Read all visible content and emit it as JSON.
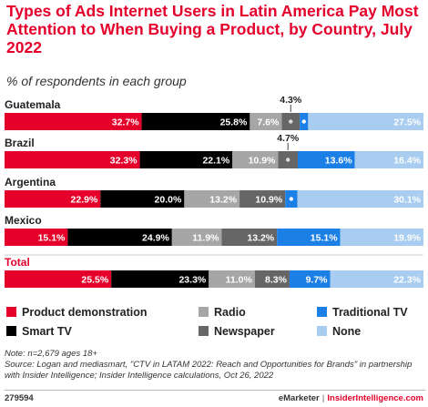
{
  "header": {
    "title": "Types of Ads Internet Users in Latin America Pay Most Attention to When Buying a Product, by Country, July 2022",
    "subtitle": "% of respondents in each group"
  },
  "chart_data": {
    "type": "bar",
    "orientation": "horizontal",
    "stacked": true,
    "categories": [
      "Guatemala",
      "Brazil",
      "Argentina",
      "Mexico",
      "Total"
    ],
    "category_colors": [
      "#222222",
      "#222222",
      "#222222",
      "#222222",
      "#e4002b"
    ],
    "series": [
      {
        "name": "Product demonstration",
        "color": "#e4002b",
        "values": [
          32.7,
          32.3,
          22.9,
          15.1,
          25.5
        ]
      },
      {
        "name": "Smart TV",
        "color": "#000000",
        "values": [
          25.8,
          22.1,
          20.0,
          24.9,
          23.3
        ]
      },
      {
        "name": "Radio",
        "color": "#a6a6a6",
        "values": [
          7.6,
          10.9,
          13.2,
          11.9,
          11.0
        ]
      },
      {
        "name": "Newspaper",
        "color": "#666666",
        "values": [
          4.3,
          4.7,
          10.9,
          13.2,
          8.3
        ]
      },
      {
        "name": "Traditional TV",
        "color": "#1b7fe6",
        "values": [
          2.0,
          13.6,
          2.9,
          15.1,
          9.7
        ]
      },
      {
        "name": "None",
        "color": "#a8cdf0",
        "values": [
          27.5,
          16.4,
          30.1,
          19.9,
          22.3
        ]
      }
    ],
    "value_labels": [
      [
        "32.7%",
        "25.8%",
        "7.6%",
        "4.3%",
        "2.0%",
        "27.5%"
      ],
      [
        "32.3%",
        "22.1%",
        "10.9%",
        "4.7%",
        "13.6%",
        "16.4%"
      ],
      [
        "22.9%",
        "20.0%",
        "13.2%",
        "10.9%",
        "2.9%",
        "30.1%"
      ],
      [
        "15.1%",
        "24.9%",
        "11.9%",
        "13.2%",
        "15.1%",
        "19.9%"
      ],
      [
        "25.5%",
        "23.3%",
        "11.0%",
        "8.3%",
        "9.7%",
        "22.3%"
      ]
    ],
    "legend": {
      "placement": "bottom",
      "items": [
        "Product demonstration",
        "Radio",
        "Traditional TV",
        "Smart TV",
        "Newspaper",
        "None"
      ]
    }
  },
  "footnote": {
    "note": "Note: n=2,679 ages 18+",
    "source": "Source: Logan and mediasmart, \"CTV in LATAM 2022: Reach and Opportunities for Brands\" in partnership with Insider Intelligence; Insider Intelligence calculations, Oct 26, 2022"
  },
  "footer": {
    "chart_id": "279594",
    "brand_left": "eMarketer",
    "separator": "|",
    "brand_right": "InsiderIntelligence.com"
  }
}
